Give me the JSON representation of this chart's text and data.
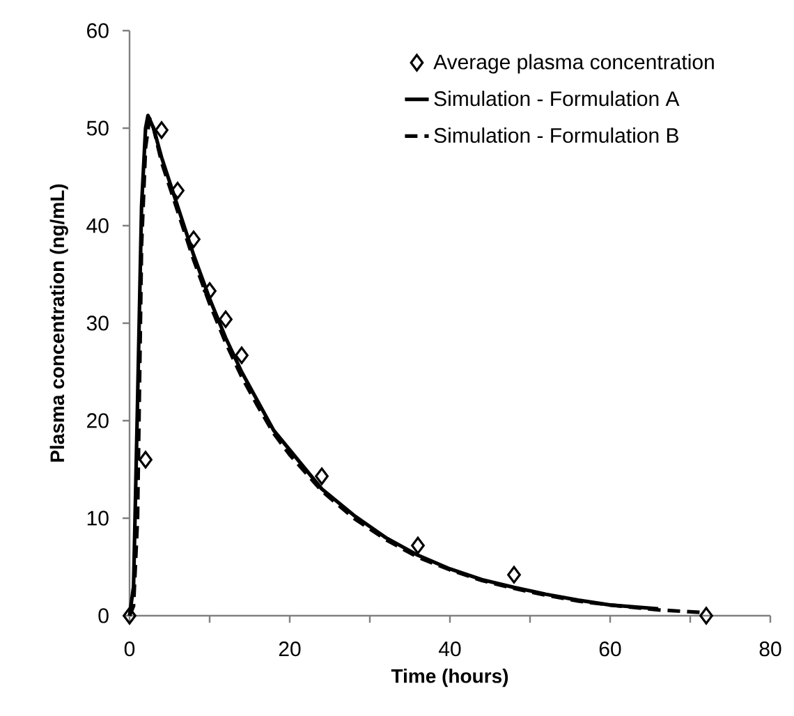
{
  "chart_data": {
    "type": "line",
    "xlabel": "Time (hours)",
    "ylabel": "Plasma concentration  (ng/mL)",
    "xlim": [
      0,
      80
    ],
    "ylim": [
      0,
      60
    ],
    "xticks": [
      0,
      {
        "value": 10,
        "label": null
      },
      20,
      {
        "value": 30,
        "label": null
      },
      40,
      {
        "value": 50,
        "label": null
      },
      60,
      {
        "value": 70,
        "label": null
      },
      80
    ],
    "yticks": [
      0,
      10,
      20,
      30,
      40,
      50,
      60
    ],
    "legend": "top right",
    "grid": false,
    "series": [
      {
        "name": "Average plasma concentration",
        "type": "scatter",
        "marker": "diamond",
        "color": "#000000",
        "x": [
          0,
          2,
          4,
          6,
          8,
          10,
          12,
          14,
          24,
          36,
          48,
          72
        ],
        "values": [
          0,
          16,
          49.8,
          43.6,
          38.6,
          33.3,
          30.4,
          26.7,
          14.3,
          7.2,
          4.2,
          0
        ]
      },
      {
        "name": "Simulation - Formulation A",
        "type": "line",
        "line_style": "solid",
        "color": "#000000",
        "x": [
          0,
          0.5,
          1,
          1.5,
          2,
          2.3,
          3,
          4,
          6,
          8,
          10,
          12,
          14,
          16,
          18,
          20,
          24,
          28,
          32,
          36,
          40,
          44,
          48,
          52,
          56,
          60,
          66
        ],
        "values": [
          0,
          3,
          22,
          42,
          50,
          51.3,
          50,
          47,
          42,
          37,
          32.5,
          28.5,
          25,
          22,
          19,
          17,
          13,
          10.3,
          8,
          6.2,
          4.8,
          3.7,
          2.9,
          2.2,
          1.6,
          1.1,
          0.7
        ]
      },
      {
        "name": "Simulation - Formulation B",
        "type": "line",
        "line_style": "dashed",
        "color": "#000000",
        "x": [
          0,
          0.5,
          1,
          1.5,
          2,
          2.5,
          3,
          4,
          6,
          8,
          10,
          12,
          14,
          16,
          18,
          20,
          24,
          28,
          32,
          36,
          40,
          44,
          48,
          52,
          56,
          60,
          66,
          72
        ],
        "values": [
          0,
          1,
          10,
          38,
          48,
          51,
          50,
          46.5,
          41.5,
          36.5,
          32,
          28,
          24.5,
          21.5,
          18.7,
          16.5,
          12.8,
          10,
          7.8,
          6,
          4.7,
          3.6,
          2.8,
          2.1,
          1.5,
          1.1,
          0.6,
          0.3
        ]
      }
    ]
  }
}
